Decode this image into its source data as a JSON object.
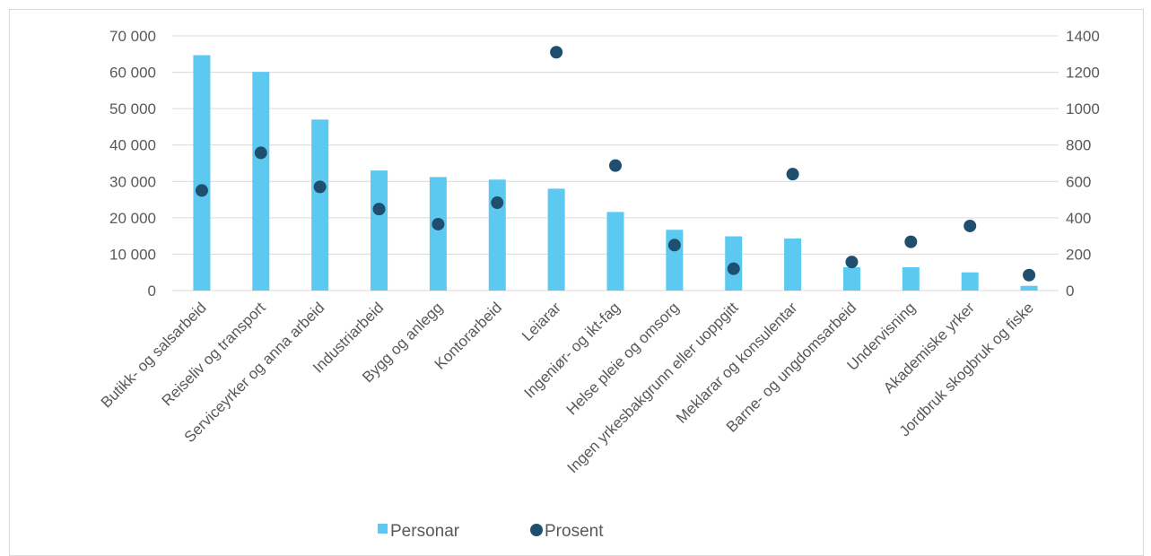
{
  "chart_data": {
    "type": "bar",
    "categories": [
      "Butikk- og salsarbeid",
      "Reiseliv og transport",
      "Serviceyrker og anna arbeid",
      "Industriarbeid",
      "Bygg og anlegg",
      "Kontorarbeid",
      "Leiarar",
      "Ingeniør- og ikt-fag",
      "Helse pleie og omsorg",
      "Ingen yrkesbakgrunn eller uoppgitt",
      "Meklarar og konsulentar",
      "Barne- og ungdomsarbeid",
      "Undervisning",
      "Akademiske yrker",
      "Jordbruk skogbruk og fiske"
    ],
    "series": [
      {
        "name": "Personar",
        "type": "bar",
        "axis": "left",
        "color": "#5bc9f0",
        "values": [
          64700,
          60100,
          47000,
          33000,
          31200,
          30500,
          28000,
          21600,
          16700,
          14900,
          14300,
          6400,
          6400,
          5000,
          1300
        ]
      },
      {
        "name": "Prosent",
        "type": "scatter",
        "axis": "right",
        "color": "#1f4e6e",
        "values": [
          550,
          757,
          570,
          448,
          365,
          483,
          1310,
          687,
          250,
          120,
          640,
          157,
          268,
          355,
          85
        ]
      }
    ],
    "y_left": {
      "min": 0,
      "max": 70000,
      "ticks": [
        0,
        10000,
        20000,
        30000,
        40000,
        50000,
        60000,
        70000
      ],
      "tick_labels": [
        "0",
        "10 000",
        "20 000",
        "30 000",
        "40 000",
        "50 000",
        "60 000",
        "70 000"
      ]
    },
    "y_right": {
      "min": 0,
      "max": 1400,
      "ticks": [
        0,
        200,
        400,
        600,
        800,
        1000,
        1200,
        1400
      ],
      "tick_labels": [
        "0",
        "200",
        "400",
        "600",
        "800",
        "1000",
        "1200",
        "1400"
      ]
    },
    "grid": true,
    "legend": {
      "placement": "bottom",
      "items": [
        "Personar",
        "Prosent"
      ]
    },
    "colors": {
      "grid": "#d9d9d9",
      "text": "#595959"
    }
  }
}
